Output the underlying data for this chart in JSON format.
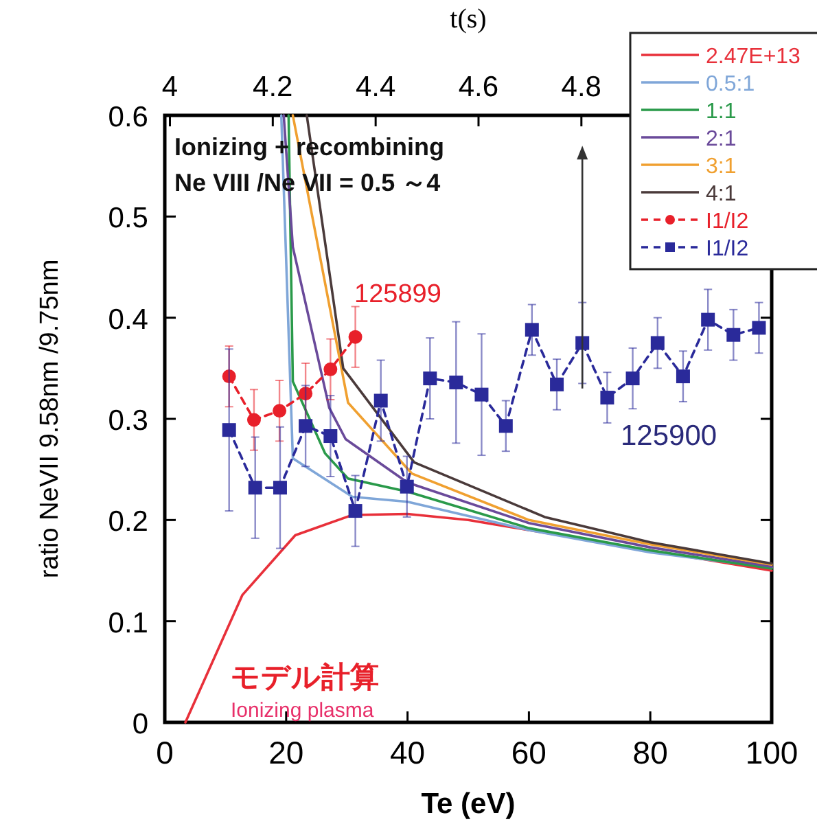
{
  "chart_data": {
    "type": "line",
    "xlabel": "Te (eV)",
    "ylabel": "ratio NeVII 9.58nm /9.75nm",
    "x2label": "t(s)",
    "xlim": [
      0,
      100
    ],
    "xticks": [
      0,
      20,
      40,
      60,
      80,
      100
    ],
    "ylim": [
      0,
      0.6
    ],
    "yticks": [
      0,
      0.1,
      0.2,
      0.3,
      0.4,
      0.5,
      0.6
    ],
    "x2lim": [
      3.99,
      5.17
    ],
    "x2ticks": [
      4,
      4.2,
      4.4,
      4.6,
      4.8
    ],
    "grid": false,
    "legend": "top right",
    "series": [
      {
        "name": "2.47E+13",
        "color": "#e8303a",
        "line_style": "solid",
        "marker": "none",
        "x": [
          3.4,
          12.8,
          21.5,
          30.9,
          40,
          50,
          60,
          70,
          80,
          90,
          100
        ],
        "values": [
          0,
          0.126,
          0.185,
          0.205,
          0.206,
          0.2,
          0.19,
          0.18,
          0.17,
          0.16,
          0.15
        ]
      },
      {
        "name": "0.5:1",
        "color": "#7fa6d8",
        "line_style": "solid",
        "marker": "none",
        "x": [
          19.2,
          21.1,
          30.9,
          40,
          60,
          80,
          100
        ],
        "values": [
          0.6,
          0.261,
          0.223,
          0.218,
          0.19,
          0.168,
          0.153
        ]
      },
      {
        "name": "1:1",
        "color": "#2a9a4a",
        "line_style": "solid",
        "marker": "none",
        "x": [
          20.4,
          21.1,
          26.4,
          30.2,
          40,
          60,
          80,
          100
        ],
        "values": [
          0.6,
          0.337,
          0.266,
          0.241,
          0.228,
          0.192,
          0.17,
          0.152
        ]
      },
      {
        "name": "2:1",
        "color": "#6a4a9a",
        "line_style": "solid",
        "marker": "none",
        "x": [
          19.6,
          21.1,
          27.1,
          29.8,
          40,
          60,
          80,
          100
        ],
        "values": [
          0.6,
          0.47,
          0.311,
          0.28,
          0.237,
          0.197,
          0.173,
          0.154
        ]
      },
      {
        "name": "3:1",
        "color": "#f0a030",
        "line_style": "solid",
        "marker": "none",
        "x": [
          21.1,
          29.4,
          30.2,
          40.7,
          60,
          80,
          100
        ],
        "values": [
          0.6,
          0.341,
          0.316,
          0.246,
          0.2,
          0.176,
          0.156
        ]
      },
      {
        "name": "4:1",
        "color": "#4a3a3a",
        "line_style": "solid",
        "marker": "none",
        "x": [
          23.4,
          29.4,
          41.1,
          62.6,
          80,
          100
        ],
        "values": [
          0.6,
          0.35,
          0.257,
          0.203,
          0.178,
          0.157
        ]
      },
      {
        "name": "I1/I2",
        "color": "#e8202a",
        "line_style": "dashed",
        "marker": "circle",
        "x": [
          10.6,
          14.7,
          18.9,
          23.2,
          27.3,
          31.4
        ],
        "values": [
          0.342,
          0.299,
          0.308,
          0.325,
          0.349,
          0.381
        ],
        "errors": [
          0.03,
          0.03,
          0.03,
          0.03,
          0.03,
          0.03
        ]
      },
      {
        "name": "I1/I2",
        "color": "#2a2a9a",
        "line_style": "dashed",
        "marker": "square",
        "x": [
          10.6,
          14.9,
          19.0,
          23.2,
          27.3,
          31.4,
          35.6,
          39.9,
          43.7,
          48.0,
          52.2,
          56.2,
          60.5,
          64.6,
          68.8,
          72.9,
          77.1,
          81.2,
          85.4,
          89.5,
          93.7,
          97.9
        ],
        "values": [
          0.289,
          0.232,
          0.232,
          0.293,
          0.283,
          0.209,
          0.318,
          0.233,
          0.34,
          0.336,
          0.324,
          0.293,
          0.388,
          0.334,
          0.375,
          0.321,
          0.34,
          0.375,
          0.342,
          0.398,
          0.383,
          0.39
        ],
        "errors": [
          0.08,
          0.05,
          0.06,
          0.04,
          0.04,
          0.035,
          0.04,
          0.03,
          0.04,
          0.06,
          0.06,
          0.025,
          0.025,
          0.025,
          0.04,
          0.025,
          0.03,
          0.025,
          0.025,
          0.03,
          0.025,
          0.025
        ]
      }
    ],
    "annotations": [
      "Ionizing + recombining",
      "Ne VIII /Ne VII = 0.5 ～4",
      "125899",
      "125900",
      "モデル計算",
      "Ionizing plasma"
    ]
  }
}
